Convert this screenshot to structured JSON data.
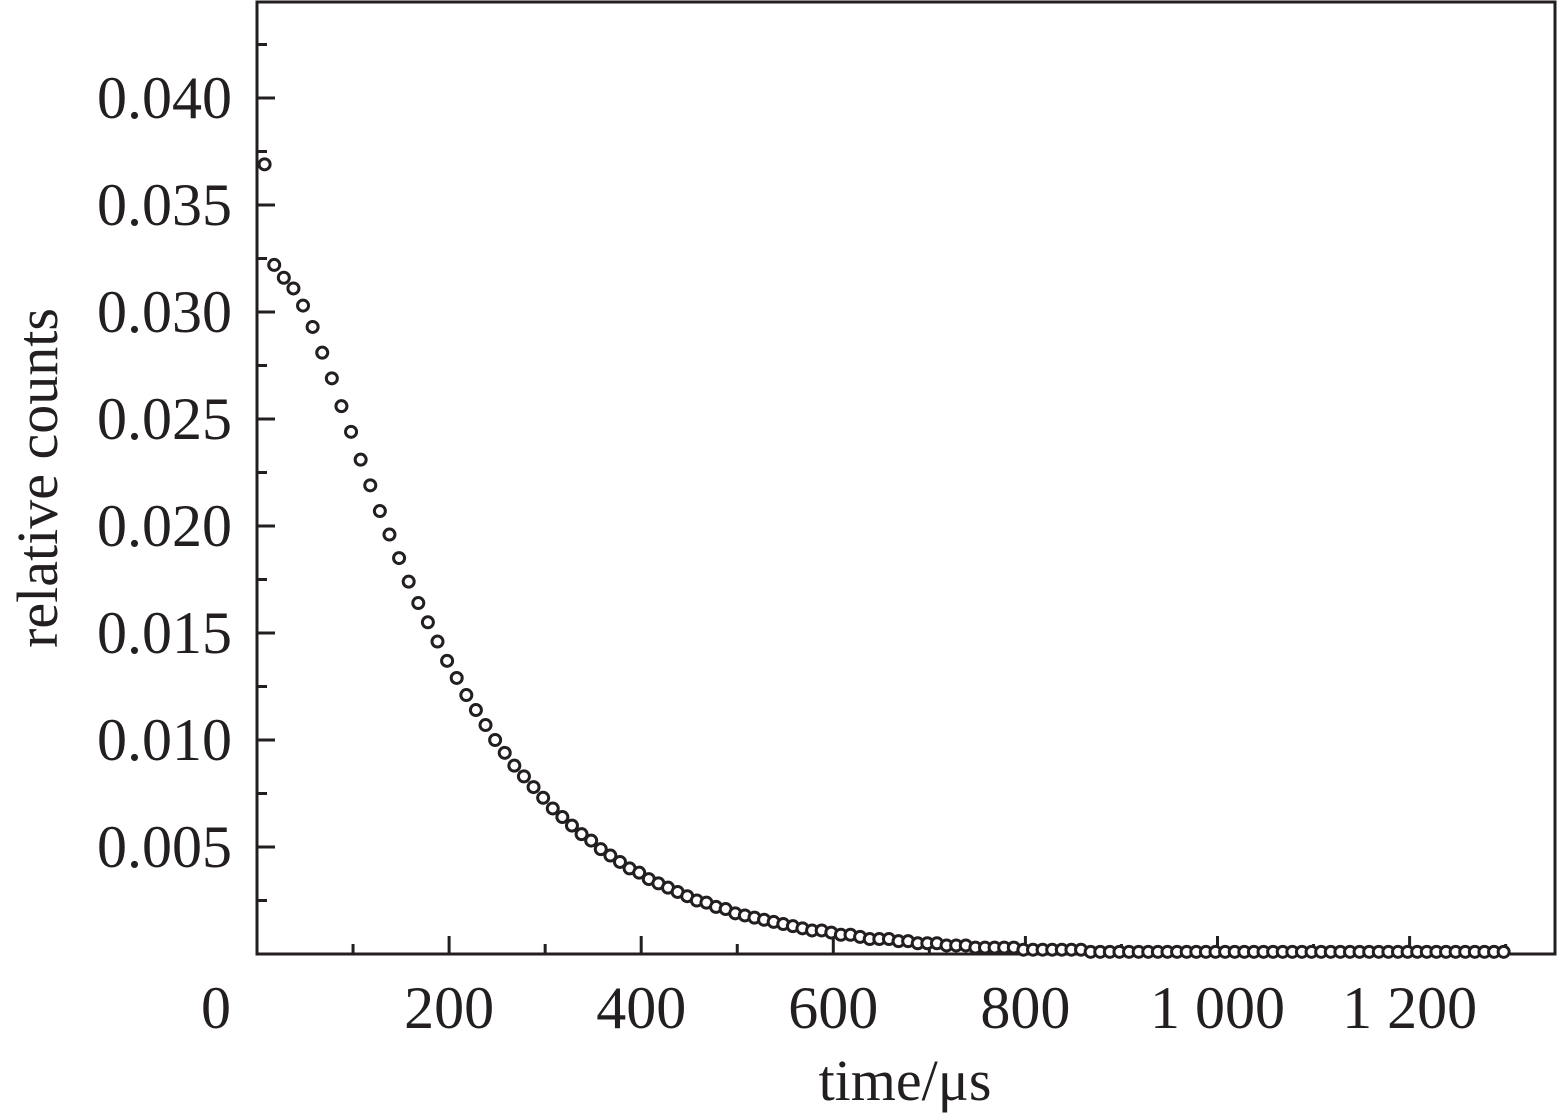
{
  "chart_data": {
    "type": "scatter",
    "title": "",
    "xlabel": "time/μs",
    "ylabel": "relative counts",
    "xlim": [
      0,
      1300
    ],
    "ylim": [
      0,
      0.0445
    ],
    "grid": false,
    "x_ticks": [
      {
        "value": 0,
        "label": "0"
      },
      {
        "value": 200,
        "label": "200"
      },
      {
        "value": 400,
        "label": "400"
      },
      {
        "value": 600,
        "label": "600"
      },
      {
        "value": 800,
        "label": "800"
      },
      {
        "value": 1000,
        "label": "1 000"
      },
      {
        "value": 1200,
        "label": "1 200"
      }
    ],
    "y_ticks": [
      {
        "value": 0.005,
        "label": "0.005"
      },
      {
        "value": 0.01,
        "label": "0.010"
      },
      {
        "value": 0.015,
        "label": "0.015"
      },
      {
        "value": 0.02,
        "label": "0.020"
      },
      {
        "value": 0.025,
        "label": "0.025"
      },
      {
        "value": 0.03,
        "label": "0.030"
      },
      {
        "value": 0.035,
        "label": "0.035"
      },
      {
        "value": 0.04,
        "label": "0.040"
      }
    ],
    "series": [
      {
        "marker": "open-circle",
        "color": "#231f20",
        "x": [
          10,
          20,
          30,
          40,
          50,
          60,
          70,
          80,
          90,
          100,
          110,
          120,
          130,
          140,
          150,
          160,
          170,
          180,
          190,
          200,
          210,
          220,
          230,
          240,
          250,
          260,
          270,
          280,
          290,
          300,
          310,
          320,
          330,
          340,
          350,
          360,
          370,
          380,
          390,
          400,
          410,
          420,
          430,
          440,
          450,
          460,
          470,
          480,
          490,
          500,
          510,
          520,
          530,
          540,
          550,
          560,
          570,
          580,
          590,
          600,
          610,
          620,
          630,
          640,
          650,
          660,
          670,
          680,
          690,
          700,
          710,
          720,
          730,
          740,
          750,
          760,
          770,
          780,
          790,
          800,
          810,
          820,
          830,
          840,
          850,
          860,
          870,
          880,
          890,
          900,
          910,
          920,
          930,
          940,
          950,
          960,
          970,
          980,
          990,
          1000,
          1010,
          1020,
          1030,
          1040,
          1050,
          1060,
          1070,
          1080,
          1090,
          1100,
          1110,
          1120,
          1130,
          1140,
          1150,
          1160,
          1170,
          1180,
          1190,
          1200,
          1210,
          1220,
          1230,
          1240,
          1250,
          1260,
          1270,
          1280,
          1290,
          1300
        ],
        "y": [
          0.0369,
          0.0322,
          0.0316,
          0.0311,
          0.0303,
          0.0293,
          0.0281,
          0.0269,
          0.0256,
          0.0244,
          0.0231,
          0.0219,
          0.0207,
          0.0196,
          0.0185,
          0.0174,
          0.0164,
          0.0155,
          0.0146,
          0.0137,
          0.0129,
          0.0121,
          0.0114,
          0.0107,
          0.01,
          0.0094,
          0.0088,
          0.0083,
          0.0078,
          0.0073,
          0.0068,
          0.0064,
          0.006,
          0.0056,
          0.0053,
          0.0049,
          0.0046,
          0.0043,
          0.004,
          0.0038,
          0.0035,
          0.0033,
          0.0031,
          0.0029,
          0.0027,
          0.0025,
          0.0024,
          0.0022,
          0.0021,
          0.0019,
          0.0018,
          0.0017,
          0.0016,
          0.0015,
          0.0014,
          0.0013,
          0.0012,
          0.0011,
          0.0011,
          0.001,
          0.0009,
          0.0009,
          0.0008,
          0.0007,
          0.0007,
          0.0007,
          0.0006,
          0.0006,
          0.0005,
          0.0005,
          0.0005,
          0.0004,
          0.0004,
          0.0004,
          0.0003,
          0.0003,
          0.0003,
          0.0003,
          0.0003,
          0.0002,
          0.0002,
          0.0002,
          0.0002,
          0.0002,
          0.0002,
          0.0002,
          0.0001,
          0.0001,
          0.0001,
          0.0001,
          0.0001,
          0.0001,
          0.0001,
          0.0001,
          0.0001,
          0.0001,
          0.0001,
          0.0001,
          0.0001,
          0.0001,
          0.0001,
          0.0001,
          0.0001,
          0.0001,
          0.0001,
          0.0001,
          0.0001,
          0.0001,
          0.0001,
          0.0001,
          0.0001,
          0.0001,
          0.0001,
          0.0001,
          0.0001,
          0.0001,
          0.0001,
          0.0001,
          0.0001,
          0.0001,
          0.0001,
          0.0001,
          0.0001,
          0.0001,
          0.0001,
          0.0001,
          0.0001,
          0.0001,
          0.0001,
          0.0001
        ]
      }
    ]
  }
}
